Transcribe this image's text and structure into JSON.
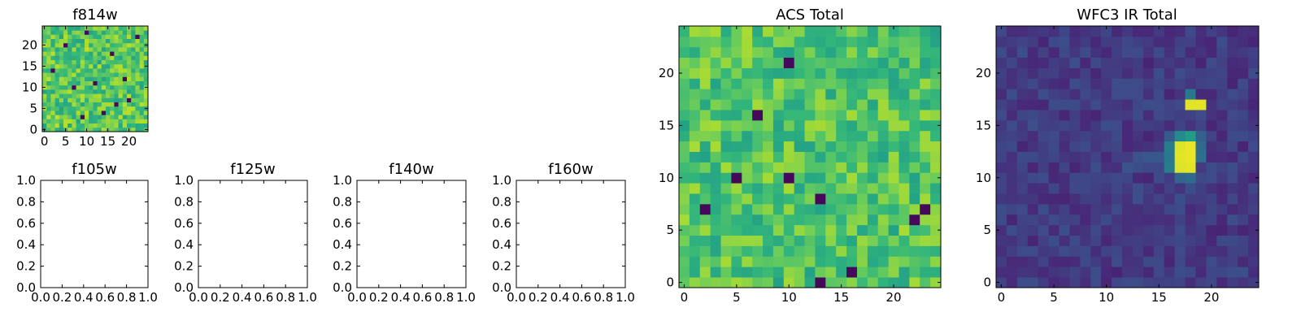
{
  "chart_data": [
    {
      "id": "f814w",
      "type": "heatmap",
      "title": "f814w",
      "colormap": "viridis",
      "grid_size": 25,
      "value_range": [
        0,
        1
      ],
      "xlim": [
        -0.5,
        24.5
      ],
      "ylim": [
        -0.5,
        24.5
      ],
      "xticks": [
        0,
        5,
        10,
        15,
        20
      ],
      "xticklabels": [
        "0",
        "5",
        "10",
        "15",
        "20"
      ],
      "yticks": [
        0,
        5,
        10,
        15,
        20
      ],
      "yticklabels": [
        "0",
        "5",
        "10",
        "15",
        "20"
      ],
      "background_mean": 0.74,
      "background_spread": 0.16,
      "low_pixels": [
        [
          9,
          3
        ],
        [
          14,
          4
        ],
        [
          20,
          7
        ],
        [
          7,
          10
        ],
        [
          12,
          11
        ],
        [
          19,
          12
        ],
        [
          2,
          14
        ],
        [
          16,
          18
        ],
        [
          5,
          20
        ],
        [
          22,
          22
        ],
        [
          10,
          23
        ],
        [
          17,
          6
        ]
      ]
    },
    {
      "id": "f105w",
      "type": "empty",
      "title": "f105w",
      "xlim": [
        0,
        1
      ],
      "ylim": [
        0,
        1
      ],
      "xticklabels": [
        "0.0",
        "0.2",
        "0.4",
        "0.6",
        "0.8",
        "1.0"
      ],
      "yticklabels": [
        "0.0",
        "0.2",
        "0.4",
        "0.6",
        "0.8",
        "1.0"
      ]
    },
    {
      "id": "f125w",
      "type": "empty",
      "title": "f125w",
      "xlim": [
        0,
        1
      ],
      "ylim": [
        0,
        1
      ],
      "xticklabels": [
        "0.0",
        "0.2",
        "0.4",
        "0.6",
        "0.8",
        "1.0"
      ],
      "yticklabels": [
        "0.0",
        "0.2",
        "0.4",
        "0.6",
        "0.8",
        "1.0"
      ]
    },
    {
      "id": "f140w",
      "type": "empty",
      "title": "f140w",
      "xlim": [
        0,
        1
      ],
      "ylim": [
        0,
        1
      ],
      "xticklabels": [
        "0.0",
        "0.2",
        "0.4",
        "0.6",
        "0.8",
        "1.0"
      ],
      "yticklabels": [
        "0.0",
        "0.2",
        "0.4",
        "0.6",
        "0.8",
        "1.0"
      ]
    },
    {
      "id": "f160w",
      "type": "empty",
      "title": "f160w",
      "xlim": [
        0,
        1
      ],
      "ylim": [
        0,
        1
      ],
      "xticklabels": [
        "0.0",
        "0.2",
        "0.4",
        "0.6",
        "0.8",
        "1.0"
      ],
      "yticklabels": [
        "0.0",
        "0.2",
        "0.4",
        "0.6",
        "0.8",
        "1.0"
      ]
    },
    {
      "id": "acs-total",
      "type": "heatmap",
      "title": "ACS Total",
      "colormap": "viridis",
      "grid_size": 25,
      "value_range": [
        0,
        1
      ],
      "xlim": [
        -0.5,
        24.5
      ],
      "ylim": [
        -0.5,
        24.5
      ],
      "xticks": [
        0,
        5,
        10,
        15,
        20
      ],
      "xticklabels": [
        "0",
        "5",
        "10",
        "15",
        "20"
      ],
      "yticks": [
        0,
        5,
        10,
        15,
        20
      ],
      "yticklabels": [
        "0",
        "5",
        "10",
        "15",
        "20"
      ],
      "background_mean": 0.72,
      "background_spread": 0.15,
      "low_pixels": [
        [
          5,
          10
        ],
        [
          10,
          10
        ],
        [
          7,
          16
        ],
        [
          13,
          8
        ],
        [
          13,
          0
        ],
        [
          16,
          1
        ],
        [
          2,
          7
        ],
        [
          23,
          7
        ],
        [
          10,
          21
        ],
        [
          22,
          6
        ]
      ]
    },
    {
      "id": "wfc3-ir-total",
      "type": "heatmap",
      "title": "WFC3 IR Total",
      "colormap": "viridis",
      "grid_size": 25,
      "value_range": [
        0,
        1
      ],
      "xlim": [
        -0.5,
        24.5
      ],
      "ylim": [
        -0.5,
        24.5
      ],
      "xticks": [
        0,
        5,
        10,
        15,
        20
      ],
      "xticklabels": [
        "0",
        "5",
        "10",
        "15",
        "20"
      ],
      "yticks": [
        0,
        5,
        10,
        15,
        20
      ],
      "yticklabels": [
        "0",
        "5",
        "10",
        "15",
        "20"
      ],
      "background_mean": 0.17,
      "background_spread": 0.07,
      "bright_pixels": [
        [
          18,
          17,
          0.96
        ],
        [
          19,
          17,
          0.96
        ],
        [
          17,
          13,
          0.95
        ],
        [
          18,
          13,
          0.97
        ],
        [
          17,
          12,
          0.96
        ],
        [
          18,
          12,
          0.97
        ],
        [
          17,
          11,
          0.95
        ],
        [
          18,
          11,
          0.96
        ],
        [
          18,
          14,
          0.55
        ],
        [
          17,
          14,
          0.48
        ],
        [
          16,
          13,
          0.42
        ],
        [
          16,
          12,
          0.4
        ],
        [
          16,
          11,
          0.42
        ],
        [
          19,
          12,
          0.36
        ],
        [
          19,
          13,
          0.34
        ],
        [
          18,
          10,
          0.34
        ],
        [
          17,
          10,
          0.32
        ],
        [
          18,
          18,
          0.4
        ],
        [
          19,
          14,
          0.3
        ],
        [
          15,
          12,
          0.27
        ],
        [
          14,
          12,
          0.27
        ],
        [
          13,
          12,
          0.25
        ],
        [
          12,
          11,
          0.26
        ],
        [
          16,
          14,
          0.28
        ]
      ]
    }
  ]
}
